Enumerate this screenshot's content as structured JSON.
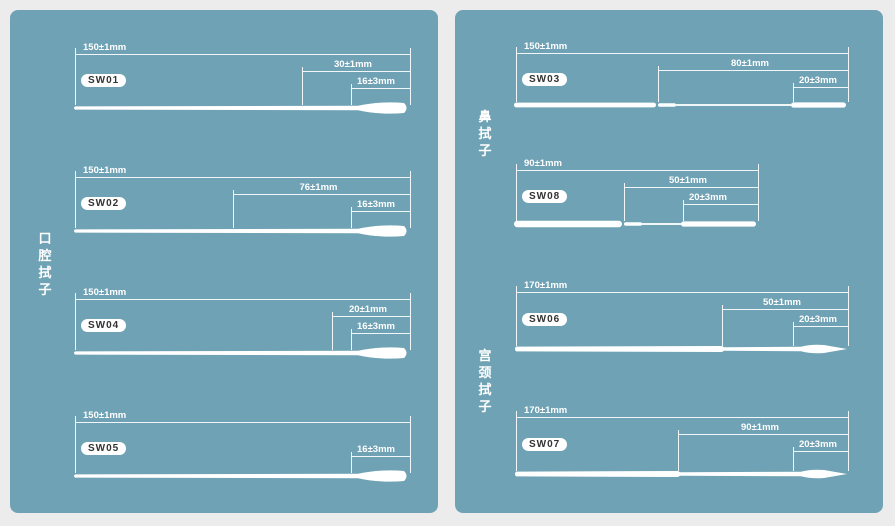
{
  "groups": {
    "oral": "口腔拭子",
    "nasal": "鼻拭子",
    "cervical": "宫颈拭子"
  },
  "swabs": {
    "sw01": {
      "model": "SW01",
      "total": "150±1mm",
      "seg1": "30±1mm",
      "tip": "16±3mm"
    },
    "sw02": {
      "model": "SW02",
      "total": "150±1mm",
      "seg1": "76±1mm",
      "tip": "16±3mm"
    },
    "sw04": {
      "model": "SW04",
      "total": "150±1mm",
      "seg1": "20±1mm",
      "tip": "16±3mm"
    },
    "sw05": {
      "model": "SW05",
      "total": "150±1mm",
      "tip": "16±3mm"
    },
    "sw03": {
      "model": "SW03",
      "total": "150±1mm",
      "seg1": "80±1mm",
      "tip": "20±3mm"
    },
    "sw08": {
      "model": "SW08",
      "total": "90±1mm",
      "seg1": "50±1mm",
      "tip": "20±3mm"
    },
    "sw06": {
      "model": "SW06",
      "total": "170±1mm",
      "seg1": "50±1mm",
      "tip": "20±3mm"
    },
    "sw07": {
      "model": "SW07",
      "total": "170±1mm",
      "seg1": "90±1mm",
      "tip": "20±3mm"
    }
  }
}
